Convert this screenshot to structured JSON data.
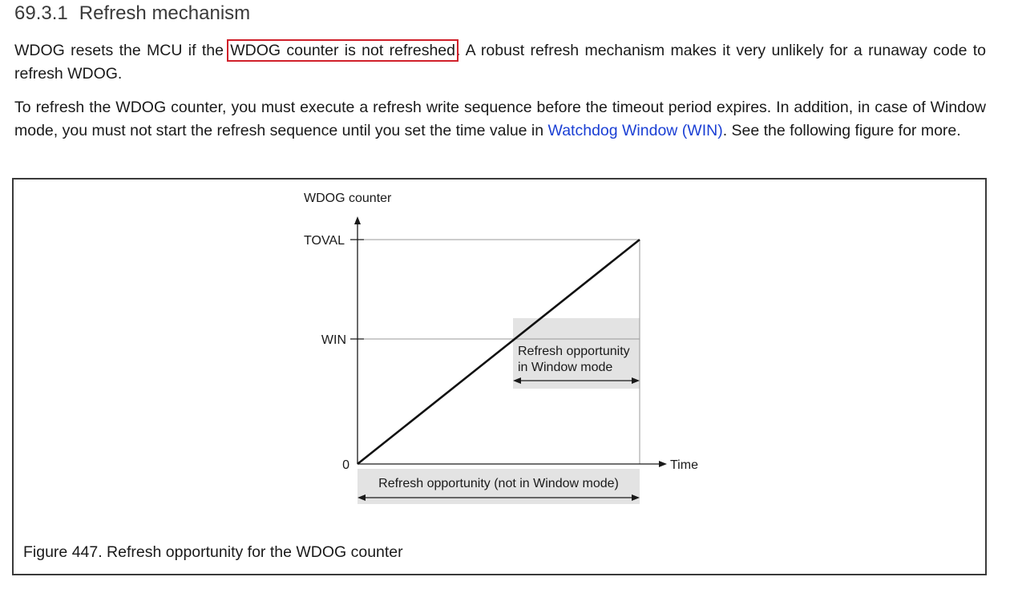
{
  "section": {
    "number": "69.3.1",
    "title": "Refresh mechanism"
  },
  "paragraph1": {
    "before": "WDOG resets the MCU if the ",
    "highlight": "WDOG counter is not refreshed",
    "after": ". A robust refresh mechanism makes it very unlikely for a runaway code to refresh WDOG."
  },
  "paragraph2": {
    "before": "To refresh the WDOG counter, you must execute a refresh write sequence before the timeout period expires. In addition, in case of Window mode, you must not start the refresh sequence until you set the time value in ",
    "link": "Watchdog Window (WIN)",
    "after": ". See the following figure for more."
  },
  "figure": {
    "y_axis_title": "WDOG counter",
    "x_axis_title": "Time",
    "tick_toval": "TOVAL",
    "tick_win": "WIN",
    "tick_zero": "0",
    "window_label_line1": "Refresh opportunity",
    "window_label_line2": "in Window mode",
    "normal_label": "Refresh opportunity (not in Window mode)",
    "caption": "Figure 447.  Refresh opportunity for the WDOG counter"
  },
  "colors": {
    "highlight_border": "#d0202a",
    "link": "#1a3fd4",
    "shade": "#e3e3e3"
  }
}
